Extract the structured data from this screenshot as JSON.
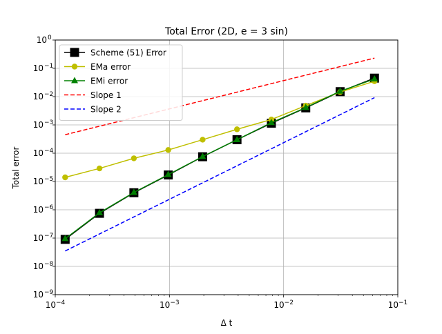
{
  "chart_data": {
    "type": "line",
    "title": "Total Error (2D, e = 3 sin)",
    "xlabel": "Δ t",
    "ylabel": "Total error",
    "xscale": "log",
    "yscale": "log",
    "xlim": [
      0.0001,
      0.1
    ],
    "ylim": [
      1e-09,
      1
    ],
    "grid": true,
    "legend_position": "top-left",
    "x_ticks": [
      {
        "value": 0.0001,
        "base": "10",
        "exp": "−4"
      },
      {
        "value": 0.001,
        "base": "10",
        "exp": "−3"
      },
      {
        "value": 0.01,
        "base": "10",
        "exp": "−2"
      },
      {
        "value": 0.1,
        "base": "10",
        "exp": "−1"
      }
    ],
    "y_ticks": [
      {
        "value": 1e-09,
        "base": "10",
        "exp": "−9"
      },
      {
        "value": 1e-08,
        "base": "10",
        "exp": "−8"
      },
      {
        "value": 1e-07,
        "base": "10",
        "exp": "−7"
      },
      {
        "value": 1e-06,
        "base": "10",
        "exp": "−6"
      },
      {
        "value": 1e-05,
        "base": "10",
        "exp": "−5"
      },
      {
        "value": 0.0001,
        "base": "10",
        "exp": "−4"
      },
      {
        "value": 0.001,
        "base": "10",
        "exp": "−3"
      },
      {
        "value": 0.01,
        "base": "10",
        "exp": "−2"
      },
      {
        "value": 0.1,
        "base": "10",
        "exp": "−1"
      },
      {
        "value": 1,
        "base": "10",
        "exp": "0"
      }
    ],
    "series": [
      {
        "name": "Scheme (51) Error",
        "color": "#000000",
        "line_style": "solid",
        "marker": "square",
        "x": [
          0.0001221,
          0.0002441,
          0.0004883,
          0.0009766,
          0.001953,
          0.003906,
          0.007813,
          0.01563,
          0.03125,
          0.0625
        ],
        "y": [
          9e-08,
          7.5e-07,
          4e-06,
          1.7e-05,
          7.5e-05,
          0.0003,
          0.00115,
          0.004,
          0.015,
          0.045
        ]
      },
      {
        "name": "EMa error",
        "color": "#bfbf00",
        "line_style": "solid",
        "marker": "circle",
        "x": [
          0.0001221,
          0.0002441,
          0.0004883,
          0.0009766,
          0.001953,
          0.003906,
          0.007813,
          0.01563,
          0.03125,
          0.0625
        ],
        "y": [
          1.4e-05,
          2.9e-05,
          6.6e-05,
          0.00013,
          0.0003,
          0.0007,
          0.00155,
          0.0048,
          0.0145,
          0.035
        ]
      },
      {
        "name": "EMi error",
        "color": "#008000",
        "line_style": "solid",
        "marker": "triangle",
        "x": [
          0.0001221,
          0.0002441,
          0.0004883,
          0.0009766,
          0.001953,
          0.003906,
          0.007813,
          0.01563,
          0.03125,
          0.0625
        ],
        "y": [
          9.5e-08,
          7.8e-07,
          4.1e-06,
          1.75e-05,
          7.6e-05,
          0.0003,
          0.0012,
          0.0041,
          0.0155,
          0.042
        ]
      },
      {
        "name": "Slope 1",
        "color": "#ff0000",
        "line_style": "dashed",
        "marker": "none",
        "x": [
          0.0001221,
          0.0625
        ],
        "y": [
          0.00045,
          0.23
        ]
      },
      {
        "name": "Slope 2",
        "color": "#0000ff",
        "line_style": "dashed",
        "marker": "none",
        "x": [
          0.0001221,
          0.0625
        ],
        "y": [
          3.5e-08,
          0.0092
        ]
      }
    ]
  }
}
